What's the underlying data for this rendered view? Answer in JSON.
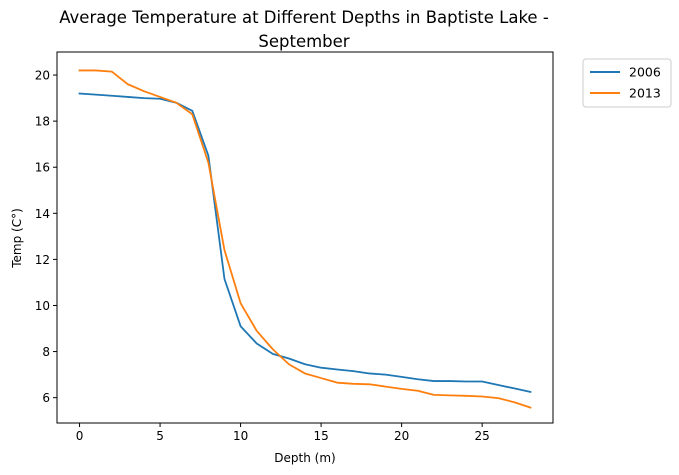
{
  "chart_data": {
    "type": "line",
    "title": "Average Temperature at Different Depths in Baptiste Lake -",
    "title_line2": "September",
    "xlabel": "Depth (m)",
    "ylabel": "Temp (C°)",
    "xlim": [
      -1.4,
      29.4
    ],
    "ylim": [
      4.9,
      21.0
    ],
    "xticks": [
      0,
      5,
      10,
      15,
      20,
      25
    ],
    "yticks": [
      6,
      8,
      10,
      12,
      14,
      16,
      18,
      20
    ],
    "grid": false,
    "legend_position": "outside-top-right",
    "series": [
      {
        "name": "2006",
        "color": "#1f77b4",
        "x": [
          0,
          1,
          2,
          3,
          4,
          5,
          6,
          7,
          8,
          9,
          10,
          11,
          12,
          13,
          14,
          15,
          16,
          17,
          18,
          19,
          20,
          21,
          22,
          23,
          24,
          25,
          26,
          27,
          28
        ],
        "y": [
          19.2,
          19.15,
          19.1,
          19.05,
          19.0,
          18.97,
          18.8,
          18.45,
          16.5,
          11.15,
          9.1,
          8.35,
          7.9,
          7.7,
          7.45,
          7.3,
          7.22,
          7.15,
          7.05,
          7.0,
          6.9,
          6.8,
          6.72,
          6.72,
          6.7,
          6.7,
          6.55,
          6.4,
          6.25
        ]
      },
      {
        "name": "2013",
        "color": "#ff7f0e",
        "x": [
          0,
          1,
          2,
          3,
          4,
          5,
          6,
          7,
          8,
          9,
          10,
          11,
          12,
          13,
          14,
          15,
          16,
          17,
          18,
          19,
          20,
          21,
          22,
          23,
          24,
          25,
          26,
          27,
          28
        ],
        "y": [
          20.2,
          20.2,
          20.15,
          19.6,
          19.3,
          19.05,
          18.8,
          18.3,
          16.2,
          12.4,
          10.1,
          8.9,
          8.1,
          7.45,
          7.05,
          6.85,
          6.65,
          6.6,
          6.58,
          6.48,
          6.38,
          6.3,
          6.12,
          6.1,
          6.08,
          6.05,
          5.98,
          5.8,
          5.57
        ]
      }
    ]
  }
}
